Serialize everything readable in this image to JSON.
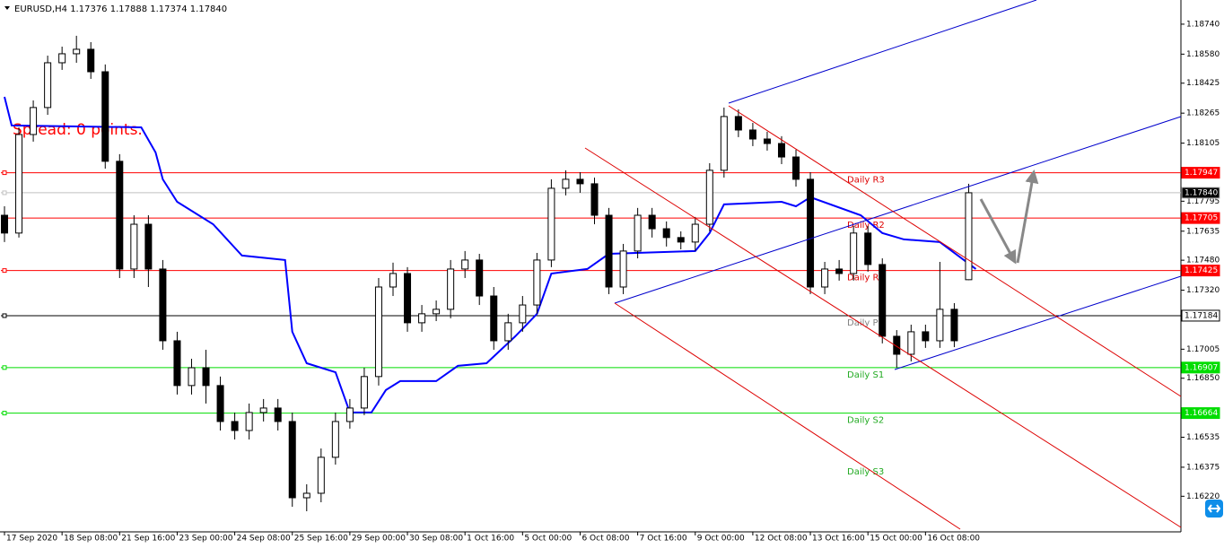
{
  "chart_data": {
    "type": "candlestick",
    "title": "EURUSD,H4  1.17376 1.17888 1.17374 1.17840",
    "annotation": "Spread: 0 points.",
    "up_color": "#ffffff",
    "down_color": "#000000",
    "x": [
      0,
      2,
      4,
      6,
      8,
      10,
      12,
      14,
      16,
      18,
      20,
      22,
      24,
      26,
      28,
      30,
      32,
      34,
      36,
      38,
      40,
      42,
      44,
      46,
      48,
      50,
      52,
      54,
      56,
      58,
      60,
      62,
      64,
      66,
      68,
      70,
      72,
      74,
      76,
      78,
      80,
      82,
      84,
      86,
      88,
      90,
      92,
      94,
      96,
      98,
      100,
      102,
      104,
      106,
      108,
      110,
      112,
      114,
      116,
      118,
      120,
      122,
      124,
      126,
      128,
      130,
      132,
      134
    ],
    "open": [
      1.1772,
      1.17625,
      1.18151,
      1.18295,
      1.18534,
      1.18582,
      1.18606,
      1.18486,
      1.18008,
      1.17433,
      1.17672,
      1.17433,
      1.1705,
      1.16811,
      1.16906,
      1.16811,
      1.16619,
      1.16571,
      1.16667,
      1.16691,
      1.16619,
      1.16212,
      1.16236,
      1.16428,
      1.16619,
      1.16691,
      1.16859,
      1.17337,
      1.17409,
      1.17146,
      1.17194,
      1.17218,
      1.17433,
      1.17481,
      1.17289,
      1.1705,
      1.17146,
      1.17241,
      1.17481,
      1.17864,
      1.17912,
      1.17888,
      1.1772,
      1.17337,
      1.17529,
      1.1772,
      1.17648,
      1.17601,
      1.17577,
      1.17672,
      1.1796,
      1.18247,
      1.18175,
      1.18127,
      1.18103,
      1.18031,
      1.17912,
      1.17337,
      1.17433,
      1.17409,
      1.17625,
      1.17457,
      1.17074,
      1.16978,
      1.17098,
      1.1705,
      1.17218,
      1.17376
    ],
    "high": [
      1.17768,
      1.18189,
      1.18333,
      1.18572,
      1.1862,
      1.18678,
      1.18644,
      1.18525,
      1.18046,
      1.1772,
      1.1772,
      1.17481,
      1.17098,
      1.16954,
      1.17002,
      1.16859,
      1.16667,
      1.16715,
      1.16739,
      1.16739,
      1.16667,
      1.16284,
      1.16475,
      1.16667,
      1.16739,
      1.16906,
      1.17385,
      1.17467,
      1.17443,
      1.17241,
      1.17265,
      1.17481,
      1.17529,
      1.17514,
      1.17337,
      1.17194,
      1.17289,
      1.17519,
      1.17912,
      1.1796,
      1.1795,
      1.17921,
      1.17759,
      1.17567,
      1.17759,
      1.17759,
      1.17687,
      1.17634,
      1.17711,
      1.17998,
      1.18295,
      1.18285,
      1.18213,
      1.18166,
      1.18142,
      1.1807,
      1.1795,
      1.17471,
      1.17481,
      1.17663,
      1.17663,
      1.1749,
      1.17107,
      1.17136,
      1.17136,
      1.17471,
      1.17251,
      1.17888
    ],
    "low": [
      1.17577,
      1.17601,
      1.18113,
      1.18256,
      1.18496,
      1.18534,
      1.18448,
      1.17969,
      1.17385,
      1.17385,
      1.17337,
      1.17002,
      1.16763,
      1.16763,
      1.16715,
      1.16571,
      1.16523,
      1.16523,
      1.16619,
      1.16571,
      1.16164,
      1.1614,
      1.16188,
      1.16389,
      1.16581,
      1.16653,
      1.16811,
      1.17289,
      1.17098,
      1.17098,
      1.17155,
      1.1717,
      1.17385,
      1.17241,
      1.17002,
      1.17002,
      1.17098,
      1.17194,
      1.17443,
      1.17826,
      1.1784,
      1.17672,
      1.17299,
      1.17299,
      1.1749,
      1.17601,
      1.17553,
      1.17538,
      1.17529,
      1.17634,
      1.17921,
      1.18137,
      1.18089,
      1.18065,
      1.17993,
      1.17873,
      1.17299,
      1.17299,
      1.17371,
      1.17371,
      1.17419,
      1.17036,
      1.16906,
      1.1694,
      1.17012,
      1.17012,
      1.17016,
      1.17374
    ],
    "close": [
      1.17625,
      1.18151,
      1.18295,
      1.18534,
      1.18582,
      1.18606,
      1.18486,
      1.18008,
      1.17433,
      1.17672,
      1.17433,
      1.1705,
      1.16811,
      1.16906,
      1.16811,
      1.16619,
      1.16571,
      1.16667,
      1.16691,
      1.16619,
      1.16212,
      1.16236,
      1.16428,
      1.16619,
      1.16691,
      1.16859,
      1.17337,
      1.17409,
      1.17146,
      1.17194,
      1.17218,
      1.17433,
      1.17481,
      1.17289,
      1.1705,
      1.17146,
      1.17241,
      1.17481,
      1.17864,
      1.17912,
      1.17888,
      1.1772,
      1.17337,
      1.17529,
      1.1772,
      1.17648,
      1.17601,
      1.17577,
      1.17672,
      1.1796,
      1.18247,
      1.18175,
      1.18127,
      1.18103,
      1.18031,
      1.17912,
      1.17337,
      1.17433,
      1.17409,
      1.17625,
      1.17457,
      1.17074,
      1.16978,
      1.17098,
      1.1705,
      1.17218,
      1.1705,
      1.1784
    ],
    "moving_average": {
      "color": "#0000ff",
      "x": [
        0,
        1,
        19,
        21,
        22,
        24,
        29,
        33,
        39,
        40,
        42,
        46,
        48,
        51,
        53,
        55,
        60,
        63,
        67,
        71,
        74,
        76,
        81,
        84,
        96,
        98,
        100,
        108,
        110,
        112,
        119,
        122,
        125,
        130,
        135
      ],
      "values": [
        1.18352,
        1.18199,
        1.18189,
        1.18055,
        1.17912,
        1.17792,
        1.17672,
        1.17505,
        1.17481,
        1.17098,
        1.1693,
        1.16882,
        1.16667,
        1.16667,
        1.16787,
        1.16835,
        1.16835,
        1.16916,
        1.1693,
        1.17074,
        1.17194,
        1.17409,
        1.17433,
        1.17514,
        1.17529,
        1.17625,
        1.17778,
        1.17792,
        1.17768,
        1.17816,
        1.1772,
        1.17625,
        1.17591,
        1.17577,
        1.17433
      ]
    },
    "xlim": [
      -0.5,
      163.5
    ],
    "ylim": [
      1.1603,
      1.18869
    ],
    "xticks": [
      {
        "value": 0,
        "label": "17 Sep 2020"
      },
      {
        "value": 8,
        "label": "18 Sep 08:00"
      },
      {
        "value": 16,
        "label": "21 Sep 16:00"
      },
      {
        "value": 24,
        "label": "23 Sep 00:00"
      },
      {
        "value": 32,
        "label": "24 Sep 08:00"
      },
      {
        "value": 40,
        "label": "25 Sep 16:00"
      },
      {
        "value": 48,
        "label": "29 Sep 00:00"
      },
      {
        "value": 56,
        "label": "30 Sep 08:00"
      },
      {
        "value": 64,
        "label": "1 Oct 16:00"
      },
      {
        "value": 72,
        "label": "5 Oct 00:00"
      },
      {
        "value": 80,
        "label": "6 Oct 08:00"
      },
      {
        "value": 88,
        "label": "7 Oct 16:00"
      },
      {
        "value": 96,
        "label": "9 Oct 00:00"
      },
      {
        "value": 104,
        "label": "12 Oct 08:00"
      },
      {
        "value": 112,
        "label": "13 Oct 16:00"
      },
      {
        "value": 120,
        "label": "15 Oct 00:00"
      },
      {
        "value": 128,
        "label": "16 Oct 08:00"
      }
    ],
    "yticks": [
      {
        "value": 1.1874,
        "label": "1.18740"
      },
      {
        "value": 1.1858,
        "label": "1.18580"
      },
      {
        "value": 1.18425,
        "label": "1.18425"
      },
      {
        "value": 1.18265,
        "label": "1.18265"
      },
      {
        "value": 1.18105,
        "label": "1.18105"
      },
      {
        "value": 1.17795,
        "label": "1.17795"
      },
      {
        "value": 1.17635,
        "label": "1.17635"
      },
      {
        "value": 1.1748,
        "label": "1.17480"
      },
      {
        "value": 1.1732,
        "label": "1.17320"
      },
      {
        "value": 1.17005,
        "label": "1.17005"
      },
      {
        "value": 1.1685,
        "label": "1.16850"
      },
      {
        "value": 1.16535,
        "label": "1.16535"
      },
      {
        "value": 1.16375,
        "label": "1.16375"
      },
      {
        "value": 1.1622,
        "label": "1.16220"
      }
    ],
    "levels": [
      {
        "value": 1.17947,
        "label": "1.17947",
        "color": "#ff0000",
        "box_color": "#ff0000"
      },
      {
        "value": 1.1784,
        "label": "1.17840",
        "color": "#c0c0c0",
        "box_color": "#000000"
      },
      {
        "value": 1.17705,
        "label": "1.17705",
        "color": "#ff0000",
        "box_color": "#ff0000"
      },
      {
        "value": 1.17425,
        "label": "1.17425",
        "color": "#ff0000",
        "box_color": "#ff0000"
      },
      {
        "value": 1.17184,
        "label": "1.17184",
        "color": "#000000",
        "box_color": "#ffffff"
      },
      {
        "value": 1.16907,
        "label": "1.16907",
        "color": "#00dd00",
        "box_color": "#00dd00"
      },
      {
        "value": 1.16664,
        "label": "1.16664",
        "color": "#00dd00",
        "box_color": "#00dd00"
      }
    ],
    "pivots": [
      {
        "name": "Daily R3",
        "value": 1.17947,
        "color": "#dd0000"
      },
      {
        "name": "Daily R2",
        "value": 1.17705,
        "color": "#dd0000"
      },
      {
        "name": "Daily R1",
        "value": 1.17425,
        "color": "#dd0000"
      },
      {
        "name": "Daily P",
        "value": 1.17184,
        "color": "#808080"
      },
      {
        "name": "Daily S1",
        "value": 1.16907,
        "color": "#22aa22"
      },
      {
        "name": "Daily S2",
        "value": 1.16664,
        "color": "#22aa22"
      },
      {
        "name": "Daily S3",
        "value": 1.16389,
        "color": "#22aa22"
      }
    ]
  }
}
